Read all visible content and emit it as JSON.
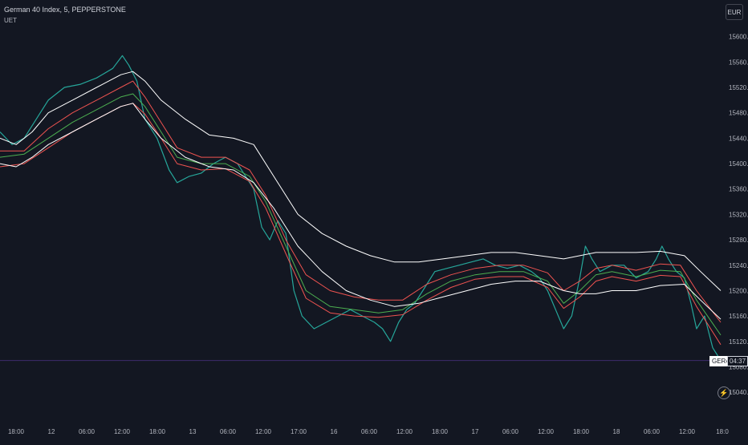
{
  "header": {
    "title": "German 40 Index, 5, PEPPERSTONE",
    "indicator": "UET"
  },
  "currency_button": "EUR",
  "symbol_tag": "GER40",
  "countdown_tag": "04:37",
  "colors": {
    "background": "#131722",
    "price": "#26a69a",
    "band_outer": "#ffffff",
    "band_mid": "#ef5350",
    "band_inner": "#4caf50",
    "price_line": "#3d2b6b"
  },
  "icons": {
    "auto_scale": "bolt-icon"
  },
  "chart_data": {
    "type": "line",
    "title": "",
    "xlabel": "",
    "ylabel": "",
    "ylim": [
      15020,
      15640
    ],
    "y_ticks": [
      15040.0,
      15080.0,
      15120.0,
      15160.0,
      15200.0,
      15240.0,
      15280.0,
      15320.0,
      15360.0,
      15400.0,
      15440.0,
      15480.0,
      15520.0,
      15560.0,
      15600.0
    ],
    "x_tick_labels": [
      "18:00",
      "12",
      "06:00",
      "12:00",
      "18:00",
      "13",
      "06:00",
      "12:00",
      "17:00",
      "16",
      "06:00",
      "12:00",
      "18:00",
      "17",
      "06:00",
      "12:00",
      "18:00",
      "18",
      "06:00",
      "12:00",
      "18:0"
    ],
    "grid": false,
    "last_price": 15090,
    "series": [
      {
        "kind": "price",
        "points": [
          [
            0,
            15450
          ],
          [
            15,
            15430
          ],
          [
            30,
            15440
          ],
          [
            45,
            15470
          ],
          [
            60,
            15500
          ],
          [
            80,
            15520
          ],
          [
            100,
            15525
          ],
          [
            120,
            15535
          ],
          [
            140,
            15550
          ],
          [
            152,
            15570
          ],
          [
            160,
            15555
          ],
          [
            170,
            15530
          ],
          [
            180,
            15470
          ],
          [
            195,
            15440
          ],
          [
            210,
            15390
          ],
          [
            220,
            15370
          ],
          [
            235,
            15380
          ],
          [
            250,
            15385
          ],
          [
            265,
            15400
          ],
          [
            280,
            15410
          ],
          [
            295,
            15400
          ],
          [
            305,
            15380
          ],
          [
            315,
            15360
          ],
          [
            325,
            15300
          ],
          [
            335,
            15280
          ],
          [
            345,
            15310
          ],
          [
            355,
            15290
          ],
          [
            365,
            15200
          ],
          [
            375,
            15160
          ],
          [
            390,
            15140
          ],
          [
            405,
            15150
          ],
          [
            420,
            15160
          ],
          [
            435,
            15170
          ],
          [
            450,
            15160
          ],
          [
            465,
            15150
          ],
          [
            475,
            15140
          ],
          [
            485,
            15120
          ],
          [
            495,
            15150
          ],
          [
            505,
            15170
          ],
          [
            515,
            15180
          ],
          [
            525,
            15200
          ],
          [
            540,
            15230
          ],
          [
            555,
            15235
          ],
          [
            570,
            15240
          ],
          [
            585,
            15245
          ],
          [
            600,
            15250
          ],
          [
            615,
            15240
          ],
          [
            630,
            15235
          ],
          [
            645,
            15240
          ],
          [
            660,
            15230
          ],
          [
            670,
            15220
          ],
          [
            680,
            15200
          ],
          [
            690,
            15170
          ],
          [
            700,
            15140
          ],
          [
            710,
            15160
          ],
          [
            720,
            15220
          ],
          [
            727,
            15270
          ],
          [
            735,
            15250
          ],
          [
            745,
            15230
          ],
          [
            760,
            15240
          ],
          [
            775,
            15240
          ],
          [
            790,
            15220
          ],
          [
            805,
            15230
          ],
          [
            815,
            15250
          ],
          [
            822,
            15270
          ],
          [
            830,
            15250
          ],
          [
            840,
            15230
          ],
          [
            850,
            15220
          ],
          [
            858,
            15180
          ],
          [
            865,
            15140
          ],
          [
            875,
            15160
          ],
          [
            885,
            15110
          ],
          [
            895,
            15090
          ]
        ]
      },
      {
        "kind": "band_outer_upper",
        "points": [
          [
            0,
            15440
          ],
          [
            20,
            15430
          ],
          [
            40,
            15450
          ],
          [
            60,
            15480
          ],
          [
            90,
            15500
          ],
          [
            120,
            15520
          ],
          [
            150,
            15540
          ],
          [
            165,
            15545
          ],
          [
            180,
            15530
          ],
          [
            200,
            15500
          ],
          [
            230,
            15470
          ],
          [
            260,
            15445
          ],
          [
            290,
            15440
          ],
          [
            315,
            15430
          ],
          [
            340,
            15380
          ],
          [
            370,
            15320
          ],
          [
            400,
            15290
          ],
          [
            430,
            15270
          ],
          [
            460,
            15255
          ],
          [
            490,
            15245
          ],
          [
            520,
            15245
          ],
          [
            550,
            15250
          ],
          [
            580,
            15255
          ],
          [
            610,
            15260
          ],
          [
            640,
            15260
          ],
          [
            670,
            15255
          ],
          [
            700,
            15250
          ],
          [
            720,
            15255
          ],
          [
            740,
            15260
          ],
          [
            760,
            15260
          ],
          [
            790,
            15260
          ],
          [
            820,
            15262
          ],
          [
            850,
            15255
          ],
          [
            870,
            15230
          ],
          [
            895,
            15200
          ]
        ]
      },
      {
        "kind": "band_mid_upper",
        "points": [
          [
            0,
            15420
          ],
          [
            30,
            15420
          ],
          [
            60,
            15455
          ],
          [
            90,
            15480
          ],
          [
            120,
            15500
          ],
          [
            150,
            15520
          ],
          [
            165,
            15530
          ],
          [
            180,
            15505
          ],
          [
            200,
            15465
          ],
          [
            220,
            15425
          ],
          [
            250,
            15410
          ],
          [
            280,
            15410
          ],
          [
            310,
            15390
          ],
          [
            330,
            15350
          ],
          [
            355,
            15280
          ],
          [
            380,
            15225
          ],
          [
            410,
            15200
          ],
          [
            440,
            15190
          ],
          [
            470,
            15185
          ],
          [
            500,
            15185
          ],
          [
            530,
            15210
          ],
          [
            560,
            15225
          ],
          [
            590,
            15235
          ],
          [
            620,
            15240
          ],
          [
            650,
            15240
          ],
          [
            680,
            15228
          ],
          [
            700,
            15200
          ],
          [
            720,
            15215
          ],
          [
            740,
            15235
          ],
          [
            760,
            15240
          ],
          [
            790,
            15232
          ],
          [
            820,
            15242
          ],
          [
            845,
            15240
          ],
          [
            865,
            15200
          ],
          [
            895,
            15150
          ]
        ]
      },
      {
        "kind": "band_inner",
        "points": [
          [
            0,
            15410
          ],
          [
            30,
            15415
          ],
          [
            60,
            15440
          ],
          [
            90,
            15465
          ],
          [
            120,
            15485
          ],
          [
            150,
            15505
          ],
          [
            165,
            15510
          ],
          [
            180,
            15490
          ],
          [
            200,
            15450
          ],
          [
            220,
            15410
          ],
          [
            250,
            15400
          ],
          [
            280,
            15400
          ],
          [
            310,
            15380
          ],
          [
            330,
            15340
          ],
          [
            355,
            15270
          ],
          [
            380,
            15200
          ],
          [
            410,
            15175
          ],
          [
            440,
            15170
          ],
          [
            470,
            15165
          ],
          [
            500,
            15170
          ],
          [
            530,
            15195
          ],
          [
            560,
            15215
          ],
          [
            590,
            15225
          ],
          [
            620,
            15230
          ],
          [
            650,
            15230
          ],
          [
            680,
            15215
          ],
          [
            700,
            15180
          ],
          [
            720,
            15200
          ],
          [
            740,
            15225
          ],
          [
            760,
            15230
          ],
          [
            790,
            15222
          ],
          [
            820,
            15232
          ],
          [
            845,
            15230
          ],
          [
            865,
            15185
          ],
          [
            895,
            15130
          ]
        ]
      },
      {
        "kind": "band_mid_lower",
        "points": [
          [
            0,
            15395
          ],
          [
            30,
            15400
          ],
          [
            60,
            15425
          ],
          [
            90,
            15450
          ],
          [
            120,
            15470
          ],
          [
            150,
            15490
          ],
          [
            165,
            15495
          ],
          [
            180,
            15478
          ],
          [
            200,
            15440
          ],
          [
            220,
            15400
          ],
          [
            250,
            15390
          ],
          [
            280,
            15392
          ],
          [
            310,
            15372
          ],
          [
            330,
            15330
          ],
          [
            355,
            15258
          ],
          [
            380,
            15188
          ],
          [
            410,
            15165
          ],
          [
            440,
            15160
          ],
          [
            470,
            15158
          ],
          [
            500,
            15162
          ],
          [
            530,
            15185
          ],
          [
            560,
            15205
          ],
          [
            590,
            15218
          ],
          [
            620,
            15222
          ],
          [
            650,
            15222
          ],
          [
            680,
            15205
          ],
          [
            700,
            15172
          ],
          [
            720,
            15190
          ],
          [
            740,
            15215
          ],
          [
            760,
            15222
          ],
          [
            790,
            15215
          ],
          [
            820,
            15224
          ],
          [
            845,
            15222
          ],
          [
            865,
            15175
          ],
          [
            895,
            15115
          ]
        ]
      },
      {
        "kind": "band_outer_lower",
        "points": [
          [
            0,
            15400
          ],
          [
            20,
            15395
          ],
          [
            40,
            15410
          ],
          [
            60,
            15430
          ],
          [
            90,
            15450
          ],
          [
            120,
            15470
          ],
          [
            150,
            15490
          ],
          [
            165,
            15495
          ],
          [
            180,
            15470
          ],
          [
            200,
            15440
          ],
          [
            230,
            15410
          ],
          [
            260,
            15395
          ],
          [
            290,
            15390
          ],
          [
            315,
            15370
          ],
          [
            340,
            15330
          ],
          [
            370,
            15270
          ],
          [
            400,
            15230
          ],
          [
            430,
            15200
          ],
          [
            460,
            15185
          ],
          [
            490,
            15175
          ],
          [
            520,
            15180
          ],
          [
            550,
            15190
          ],
          [
            580,
            15200
          ],
          [
            610,
            15210
          ],
          [
            640,
            15215
          ],
          [
            670,
            15215
          ],
          [
            700,
            15200
          ],
          [
            720,
            15195
          ],
          [
            740,
            15195
          ],
          [
            760,
            15200
          ],
          [
            790,
            15200
          ],
          [
            820,
            15208
          ],
          [
            850,
            15210
          ],
          [
            870,
            15185
          ],
          [
            895,
            15155
          ]
        ]
      }
    ]
  }
}
